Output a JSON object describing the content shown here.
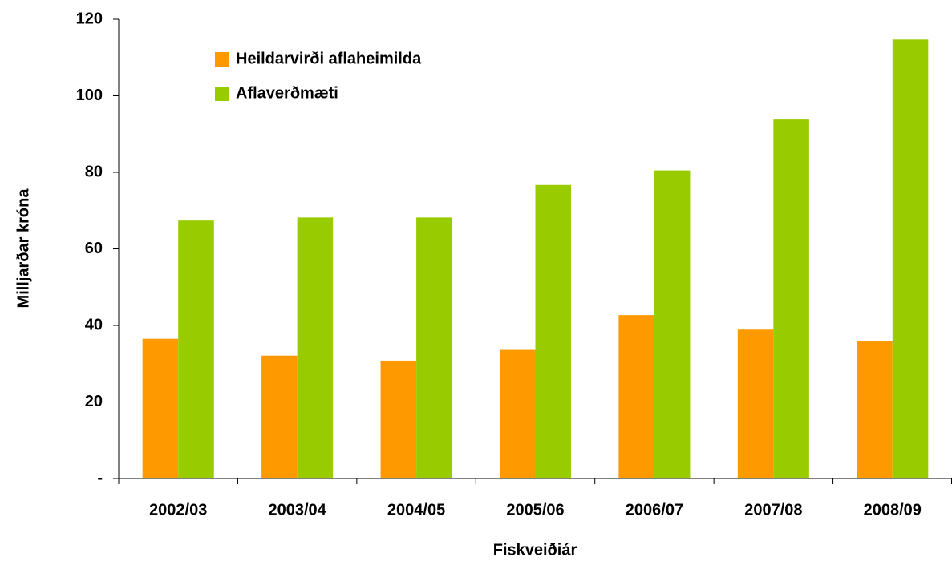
{
  "chart_data": {
    "type": "bar",
    "x_label": "Fiskveiðiár",
    "y_label": "Milljarðar króna",
    "categories": [
      "2002/03",
      "2003/04",
      "2004/05",
      "2005/06",
      "2006/07",
      "2007/08",
      "2008/09"
    ],
    "series": [
      {
        "name": "Heildarvirði aflaheimilda",
        "color": "#ff9900",
        "values": [
          36.5,
          32.1,
          30.8,
          33.6,
          42.7,
          38.9,
          35.9
        ]
      },
      {
        "name": "Aflaverðmæti",
        "color": "#99cc00",
        "values": [
          67.4,
          68.2,
          68.2,
          76.7,
          80.5,
          93.8,
          114.7
        ]
      }
    ],
    "ylim": [
      0,
      120
    ],
    "yticks": [
      {
        "value": 0,
        "label": "-"
      },
      20,
      40,
      60,
      80,
      100,
      120
    ],
    "grid": false,
    "legend": "upper left"
  }
}
